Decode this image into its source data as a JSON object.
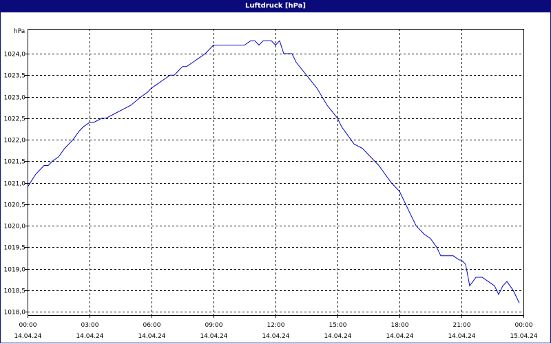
{
  "window": {
    "title": "Luftdruck [hPa]"
  },
  "chart_data": {
    "type": "line",
    "title": "Luftdruck [hPa]",
    "ylabel": "hPa",
    "xlabel": "",
    "ylim": [
      1018.0,
      1024.4
    ],
    "yticks": [
      1018.0,
      1018.5,
      1019.0,
      1019.5,
      1020.0,
      1020.5,
      1021.0,
      1021.5,
      1022.0,
      1022.5,
      1023.0,
      1023.5,
      1024.0
    ],
    "ytick_labels": [
      "1018,0",
      "1018,5",
      "1019,0",
      "1019,5",
      "1020,0",
      "1020,5",
      "1021,0",
      "1021,5",
      "1022,0",
      "1022,5",
      "1023,0",
      "1023,5",
      "1024,0"
    ],
    "xlim_hours": [
      0,
      24
    ],
    "xticks": [
      {
        "hours": 0,
        "time": "00:00",
        "date": "14.04.24"
      },
      {
        "hours": 3,
        "time": "03:00",
        "date": "14.04.24"
      },
      {
        "hours": 6,
        "time": "06:00",
        "date": "14.04.24"
      },
      {
        "hours": 9,
        "time": "09:00",
        "date": "14.04.24"
      },
      {
        "hours": 12,
        "time": "12:00",
        "date": "14.04.24"
      },
      {
        "hours": 15,
        "time": "15:00",
        "date": "14.04.24"
      },
      {
        "hours": 18,
        "time": "18:00",
        "date": "14.04.24"
      },
      {
        "hours": 21,
        "time": "21:00",
        "date": "14.04.24"
      },
      {
        "hours": 24,
        "time": "00:00",
        "date": "15.04.24"
      }
    ],
    "grid": true,
    "line_color": "#0000cc",
    "series": [
      {
        "x": [
          0.0,
          0.4,
          0.8,
          1.0,
          1.2,
          1.5,
          1.8,
          2.0,
          2.2,
          2.5,
          2.7,
          3.0,
          3.2,
          3.6,
          3.8,
          4.2,
          4.6,
          5.0,
          5.5,
          5.8,
          6.0,
          6.3,
          6.6,
          6.9,
          7.1,
          7.3,
          7.5,
          7.7,
          8.0,
          8.3,
          8.6,
          9.0,
          9.2,
          9.5,
          10.0,
          10.5,
          10.8,
          11.0,
          11.2,
          11.4,
          11.6,
          11.8,
          12.0,
          12.2,
          12.4,
          12.6,
          12.8,
          13.0,
          13.5,
          14.0,
          14.5,
          15.0,
          15.2,
          15.5,
          15.8,
          16.2,
          16.6,
          17.0,
          17.3,
          17.6,
          18.0,
          18.5,
          18.8,
          19.2,
          19.5,
          19.8,
          20.0,
          20.3,
          20.6,
          20.9,
          21.0,
          21.2,
          21.4,
          21.7,
          22.0,
          22.3,
          22.6,
          22.8,
          23.0,
          23.2,
          23.5,
          23.8
        ],
        "y": [
          1020.9,
          1021.2,
          1021.4,
          1021.4,
          1021.5,
          1021.6,
          1021.8,
          1021.9,
          1022.0,
          1022.2,
          1022.3,
          1022.4,
          1022.4,
          1022.5,
          1022.5,
          1022.6,
          1022.7,
          1022.8,
          1023.0,
          1023.1,
          1023.2,
          1023.3,
          1023.4,
          1023.5,
          1023.5,
          1023.6,
          1023.7,
          1023.7,
          1023.8,
          1023.9,
          1024.0,
          1024.2,
          1024.2,
          1024.2,
          1024.2,
          1024.2,
          1024.3,
          1024.3,
          1024.2,
          1024.3,
          1024.3,
          1024.3,
          1024.2,
          1024.3,
          1024.0,
          1024.0,
          1024.0,
          1023.8,
          1023.5,
          1023.2,
          1022.8,
          1022.5,
          1022.3,
          1022.1,
          1021.9,
          1021.8,
          1021.6,
          1021.4,
          1021.2,
          1021.0,
          1020.8,
          1020.3,
          1020.0,
          1019.8,
          1019.7,
          1019.5,
          1019.3,
          1019.3,
          1019.3,
          1019.2,
          1019.2,
          1019.1,
          1018.6,
          1018.8,
          1018.8,
          1018.7,
          1018.6,
          1018.4,
          1018.6,
          1018.7,
          1018.5,
          1018.2
        ]
      }
    ]
  }
}
